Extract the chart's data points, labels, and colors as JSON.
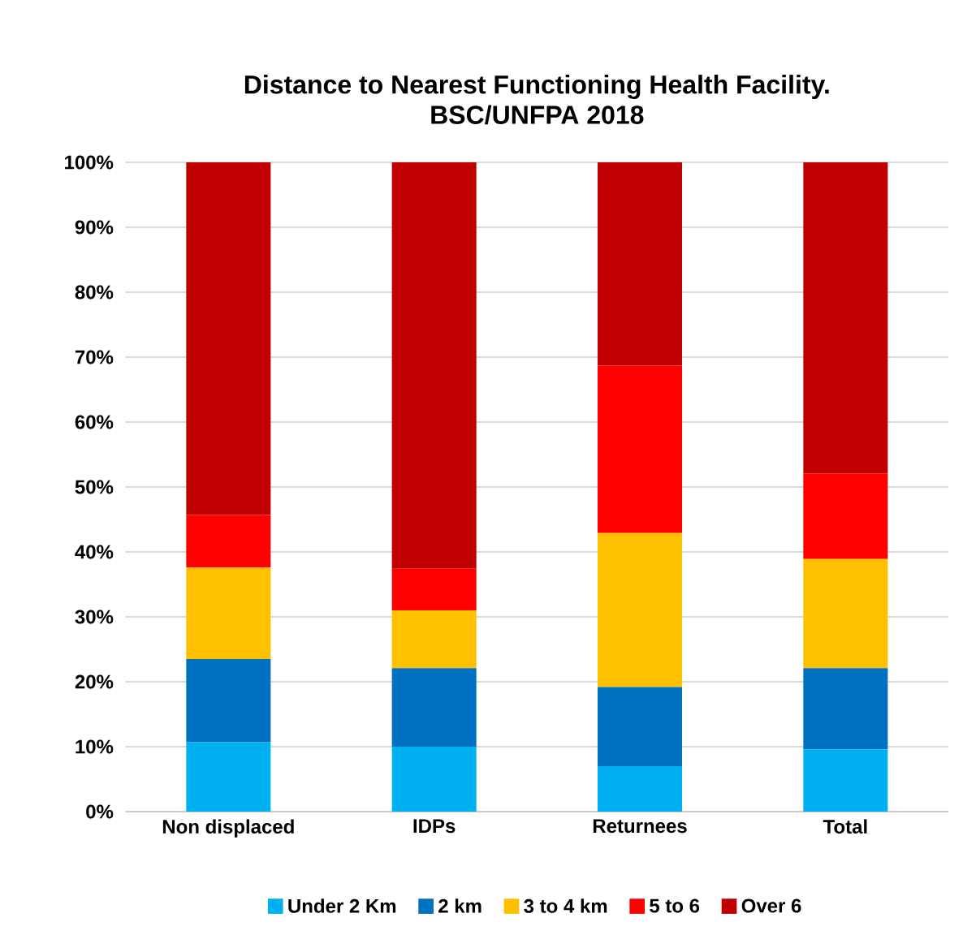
{
  "chart_data": {
    "type": "bar",
    "stacked": true,
    "title": "Distance to Nearest Functioning  Health Facility.\nBSC/UNFPA 2018",
    "categories": [
      "Non displaced",
      "IDPs",
      "Returnees",
      "Total"
    ],
    "series": [
      {
        "name": "Under 2 Km",
        "color": "#00b0f0",
        "values": [
          10.7,
          10.0,
          7.0,
          9.6
        ]
      },
      {
        "name": "2 km",
        "color": "#0070c0",
        "values": [
          12.8,
          12.1,
          12.2,
          12.5
        ]
      },
      {
        "name": "3 to 4 km",
        "color": "#ffc000",
        "values": [
          14.1,
          8.9,
          23.7,
          16.8
        ]
      },
      {
        "name": "5 to 6",
        "color": "#ff0000",
        "values": [
          8.1,
          6.4,
          25.8,
          13.2
        ]
      },
      {
        "name": "Over 6",
        "color": "#c00000",
        "values": [
          54.3,
          62.6,
          31.3,
          47.9
        ]
      }
    ],
    "ylim": [
      0,
      100
    ],
    "yticks": [
      {
        "value": 0,
        "label": "0%"
      },
      {
        "value": 10,
        "label": "10%"
      },
      {
        "value": 20,
        "label": "20%"
      },
      {
        "value": 30,
        "label": "30%"
      },
      {
        "value": 40,
        "label": "40%"
      },
      {
        "value": 50,
        "label": "50%"
      },
      {
        "value": 60,
        "label": "60%"
      },
      {
        "value": 70,
        "label": "70%"
      },
      {
        "value": 80,
        "label": "80%"
      },
      {
        "value": 90,
        "label": "90%"
      },
      {
        "value": 100,
        "label": "100%"
      }
    ],
    "grid": "y",
    "legend": "bottom"
  }
}
